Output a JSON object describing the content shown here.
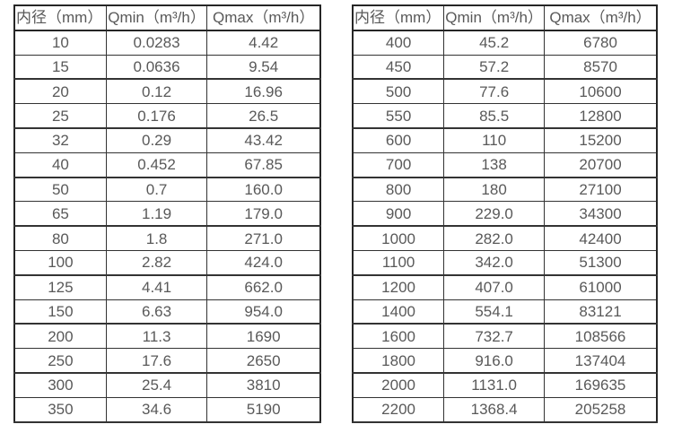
{
  "tables": [
    {
      "name": "small-diameter-flow-table",
      "headers": [
        "内径（mm）",
        "Qmin（m³/h）",
        "Qmax（m³/h）"
      ],
      "rows": [
        [
          "10",
          "0.0283",
          "4.42"
        ],
        [
          "15",
          "0.0636",
          "9.54"
        ],
        [
          "20",
          "0.12",
          "16.96"
        ],
        [
          "25",
          "0.176",
          "26.5"
        ],
        [
          "32",
          "0.29",
          "43.42"
        ],
        [
          "40",
          "0.452",
          "67.85"
        ],
        [
          "50",
          "0.7",
          "160.0"
        ],
        [
          "65",
          "1.19",
          "179.0"
        ],
        [
          "80",
          "1.8",
          "271.0"
        ],
        [
          "100",
          "2.82",
          "424.0"
        ],
        [
          "125",
          "4.41",
          "662.0"
        ],
        [
          "150",
          "6.63",
          "954.0"
        ],
        [
          "200",
          "11.3",
          "1690"
        ],
        [
          "250",
          "17.6",
          "2650"
        ],
        [
          "300",
          "25.4",
          "3810"
        ],
        [
          "350",
          "34.6",
          "5190"
        ]
      ]
    },
    {
      "name": "large-diameter-flow-table",
      "headers": [
        "内径（mm）",
        "Qmin（m³/h）",
        "Qmax（m³/h）"
      ],
      "rows": [
        [
          "400",
          "45.2",
          "6780"
        ],
        [
          "450",
          "57.2",
          "8570"
        ],
        [
          "500",
          "77.6",
          "10600"
        ],
        [
          "550",
          "85.5",
          "12800"
        ],
        [
          "600",
          "110",
          "15200"
        ],
        [
          "700",
          "138",
          "20700"
        ],
        [
          "800",
          "180",
          "27100"
        ],
        [
          "900",
          "229.0",
          "34300"
        ],
        [
          "1000",
          "282.0",
          "42400"
        ],
        [
          "1100",
          "342.0",
          "51300"
        ],
        [
          "1200",
          "407.0",
          "61000"
        ],
        [
          "1400",
          "554.1",
          "83121"
        ],
        [
          "1600",
          "732.7",
          "108566"
        ],
        [
          "1800",
          "916.0",
          "137404"
        ],
        [
          "2000",
          "1131.0",
          "169635"
        ],
        [
          "2200",
          "1368.4",
          "205258"
        ]
      ]
    }
  ],
  "colors": {
    "border_outer": "#262626",
    "border_inner": "#333333",
    "text": "#595959",
    "background": "#ffffff"
  }
}
